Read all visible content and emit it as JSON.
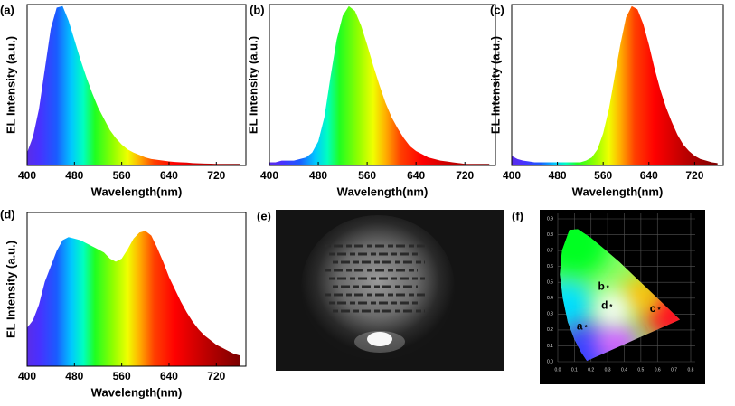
{
  "chart_data": [
    {
      "type": "area",
      "label": "(a)",
      "ylabel": "EL Intensity (a.u.)",
      "xlabel": "Wavelength(nm)",
      "x": [
        400,
        410,
        420,
        430,
        440,
        450,
        460,
        470,
        480,
        490,
        500,
        510,
        520,
        530,
        540,
        550,
        560,
        570,
        580,
        590,
        600,
        610,
        620,
        630,
        640,
        650,
        660,
        670,
        680,
        690,
        700,
        710,
        720,
        730,
        740,
        750,
        760
      ],
      "values": [
        0.08,
        0.18,
        0.35,
        0.6,
        0.85,
        0.98,
        0.99,
        0.9,
        0.78,
        0.66,
        0.55,
        0.45,
        0.36,
        0.29,
        0.22,
        0.17,
        0.13,
        0.1,
        0.08,
        0.065,
        0.05,
        0.04,
        0.035,
        0.03,
        0.025,
        0.022,
        0.02,
        0.018,
        0.015,
        0.013,
        0.012,
        0.011,
        0.01,
        0.01,
        0.01,
        0.01,
        0.01
      ],
      "xlim": [
        400,
        770
      ],
      "ylim": [
        0,
        1
      ],
      "xticks": [
        400,
        480,
        560,
        640,
        720
      ]
    },
    {
      "type": "area",
      "label": "(b)",
      "ylabel": "EL Intensity (a.u.)",
      "xlabel": "Wavelength(nm)",
      "x": [
        400,
        410,
        420,
        430,
        440,
        450,
        460,
        470,
        480,
        490,
        500,
        510,
        520,
        530,
        540,
        550,
        560,
        570,
        580,
        590,
        600,
        610,
        620,
        630,
        640,
        650,
        660,
        670,
        680,
        690,
        700,
        710,
        720,
        730,
        740,
        750,
        760
      ],
      "values": [
        0.02,
        0.02,
        0.03,
        0.03,
        0.03,
        0.04,
        0.05,
        0.08,
        0.15,
        0.3,
        0.55,
        0.78,
        0.93,
        0.99,
        0.96,
        0.87,
        0.75,
        0.62,
        0.5,
        0.39,
        0.3,
        0.23,
        0.17,
        0.12,
        0.09,
        0.07,
        0.05,
        0.04,
        0.03,
        0.025,
        0.02,
        0.015,
        0.01,
        0.01,
        0.01,
        0.01,
        0.01
      ],
      "xlim": [
        400,
        770
      ],
      "ylim": [
        0,
        1
      ],
      "xticks": [
        400,
        480,
        560,
        640,
        720
      ]
    },
    {
      "type": "area",
      "label": "(c)",
      "ylabel": "EL Intensity (a.u.)",
      "xlabel": "Wavelength(nm)",
      "x": [
        400,
        410,
        420,
        430,
        440,
        450,
        460,
        470,
        480,
        490,
        500,
        510,
        520,
        530,
        540,
        550,
        560,
        570,
        580,
        590,
        600,
        610,
        620,
        630,
        640,
        650,
        660,
        670,
        680,
        690,
        700,
        710,
        720,
        730,
        740,
        750,
        760
      ],
      "values": [
        0.06,
        0.04,
        0.03,
        0.025,
        0.02,
        0.02,
        0.02,
        0.02,
        0.02,
        0.02,
        0.02,
        0.02,
        0.02,
        0.03,
        0.05,
        0.1,
        0.2,
        0.35,
        0.55,
        0.75,
        0.92,
        0.99,
        0.97,
        0.88,
        0.75,
        0.6,
        0.47,
        0.36,
        0.27,
        0.19,
        0.13,
        0.09,
        0.06,
        0.04,
        0.03,
        0.02,
        0.015
      ],
      "xlim": [
        400,
        770
      ],
      "ylim": [
        0,
        1
      ],
      "xticks": [
        400,
        480,
        560,
        640,
        720
      ]
    },
    {
      "type": "area",
      "label": "(d)",
      "ylabel": "EL Intensity (a.u.)",
      "xlabel": "Wavelength(nm)",
      "x": [
        400,
        410,
        420,
        430,
        440,
        450,
        460,
        470,
        480,
        490,
        500,
        510,
        520,
        530,
        540,
        550,
        560,
        570,
        580,
        590,
        600,
        610,
        620,
        630,
        640,
        650,
        660,
        670,
        680,
        690,
        700,
        710,
        720,
        730,
        740,
        750,
        760
      ],
      "values": [
        0.25,
        0.3,
        0.4,
        0.55,
        0.65,
        0.75,
        0.82,
        0.84,
        0.83,
        0.82,
        0.8,
        0.78,
        0.76,
        0.74,
        0.7,
        0.68,
        0.7,
        0.76,
        0.83,
        0.87,
        0.88,
        0.85,
        0.77,
        0.68,
        0.58,
        0.5,
        0.42,
        0.35,
        0.29,
        0.24,
        0.2,
        0.17,
        0.14,
        0.12,
        0.1,
        0.08,
        0.07
      ],
      "xlim": [
        400,
        770
      ],
      "ylim": [
        0,
        1
      ],
      "xticks": [
        400,
        480,
        560,
        640,
        720
      ]
    },
    {
      "type": "image",
      "label": "(e)"
    },
    {
      "type": "scatter",
      "label": "(f)",
      "point_labels": [
        "a",
        "b",
        "c",
        "d"
      ],
      "x": [
        0.17,
        0.3,
        0.61,
        0.32
      ],
      "values": [
        0.22,
        0.47,
        0.33,
        0.35
      ],
      "xlim": [
        0,
        0.8
      ],
      "ylim": [
        0,
        0.9
      ],
      "grid": true,
      "xticks": [
        {
          "value": 0,
          "label": "0.0"
        },
        0.1,
        0.2,
        0.3,
        0.4,
        0.5,
        0.6,
        0.7,
        0.8
      ],
      "yticks": [
        {
          "value": 0,
          "label": "0.0"
        },
        0.1,
        0.2,
        0.3,
        0.4,
        0.5,
        0.6,
        0.7,
        0.8,
        0.9
      ]
    }
  ]
}
